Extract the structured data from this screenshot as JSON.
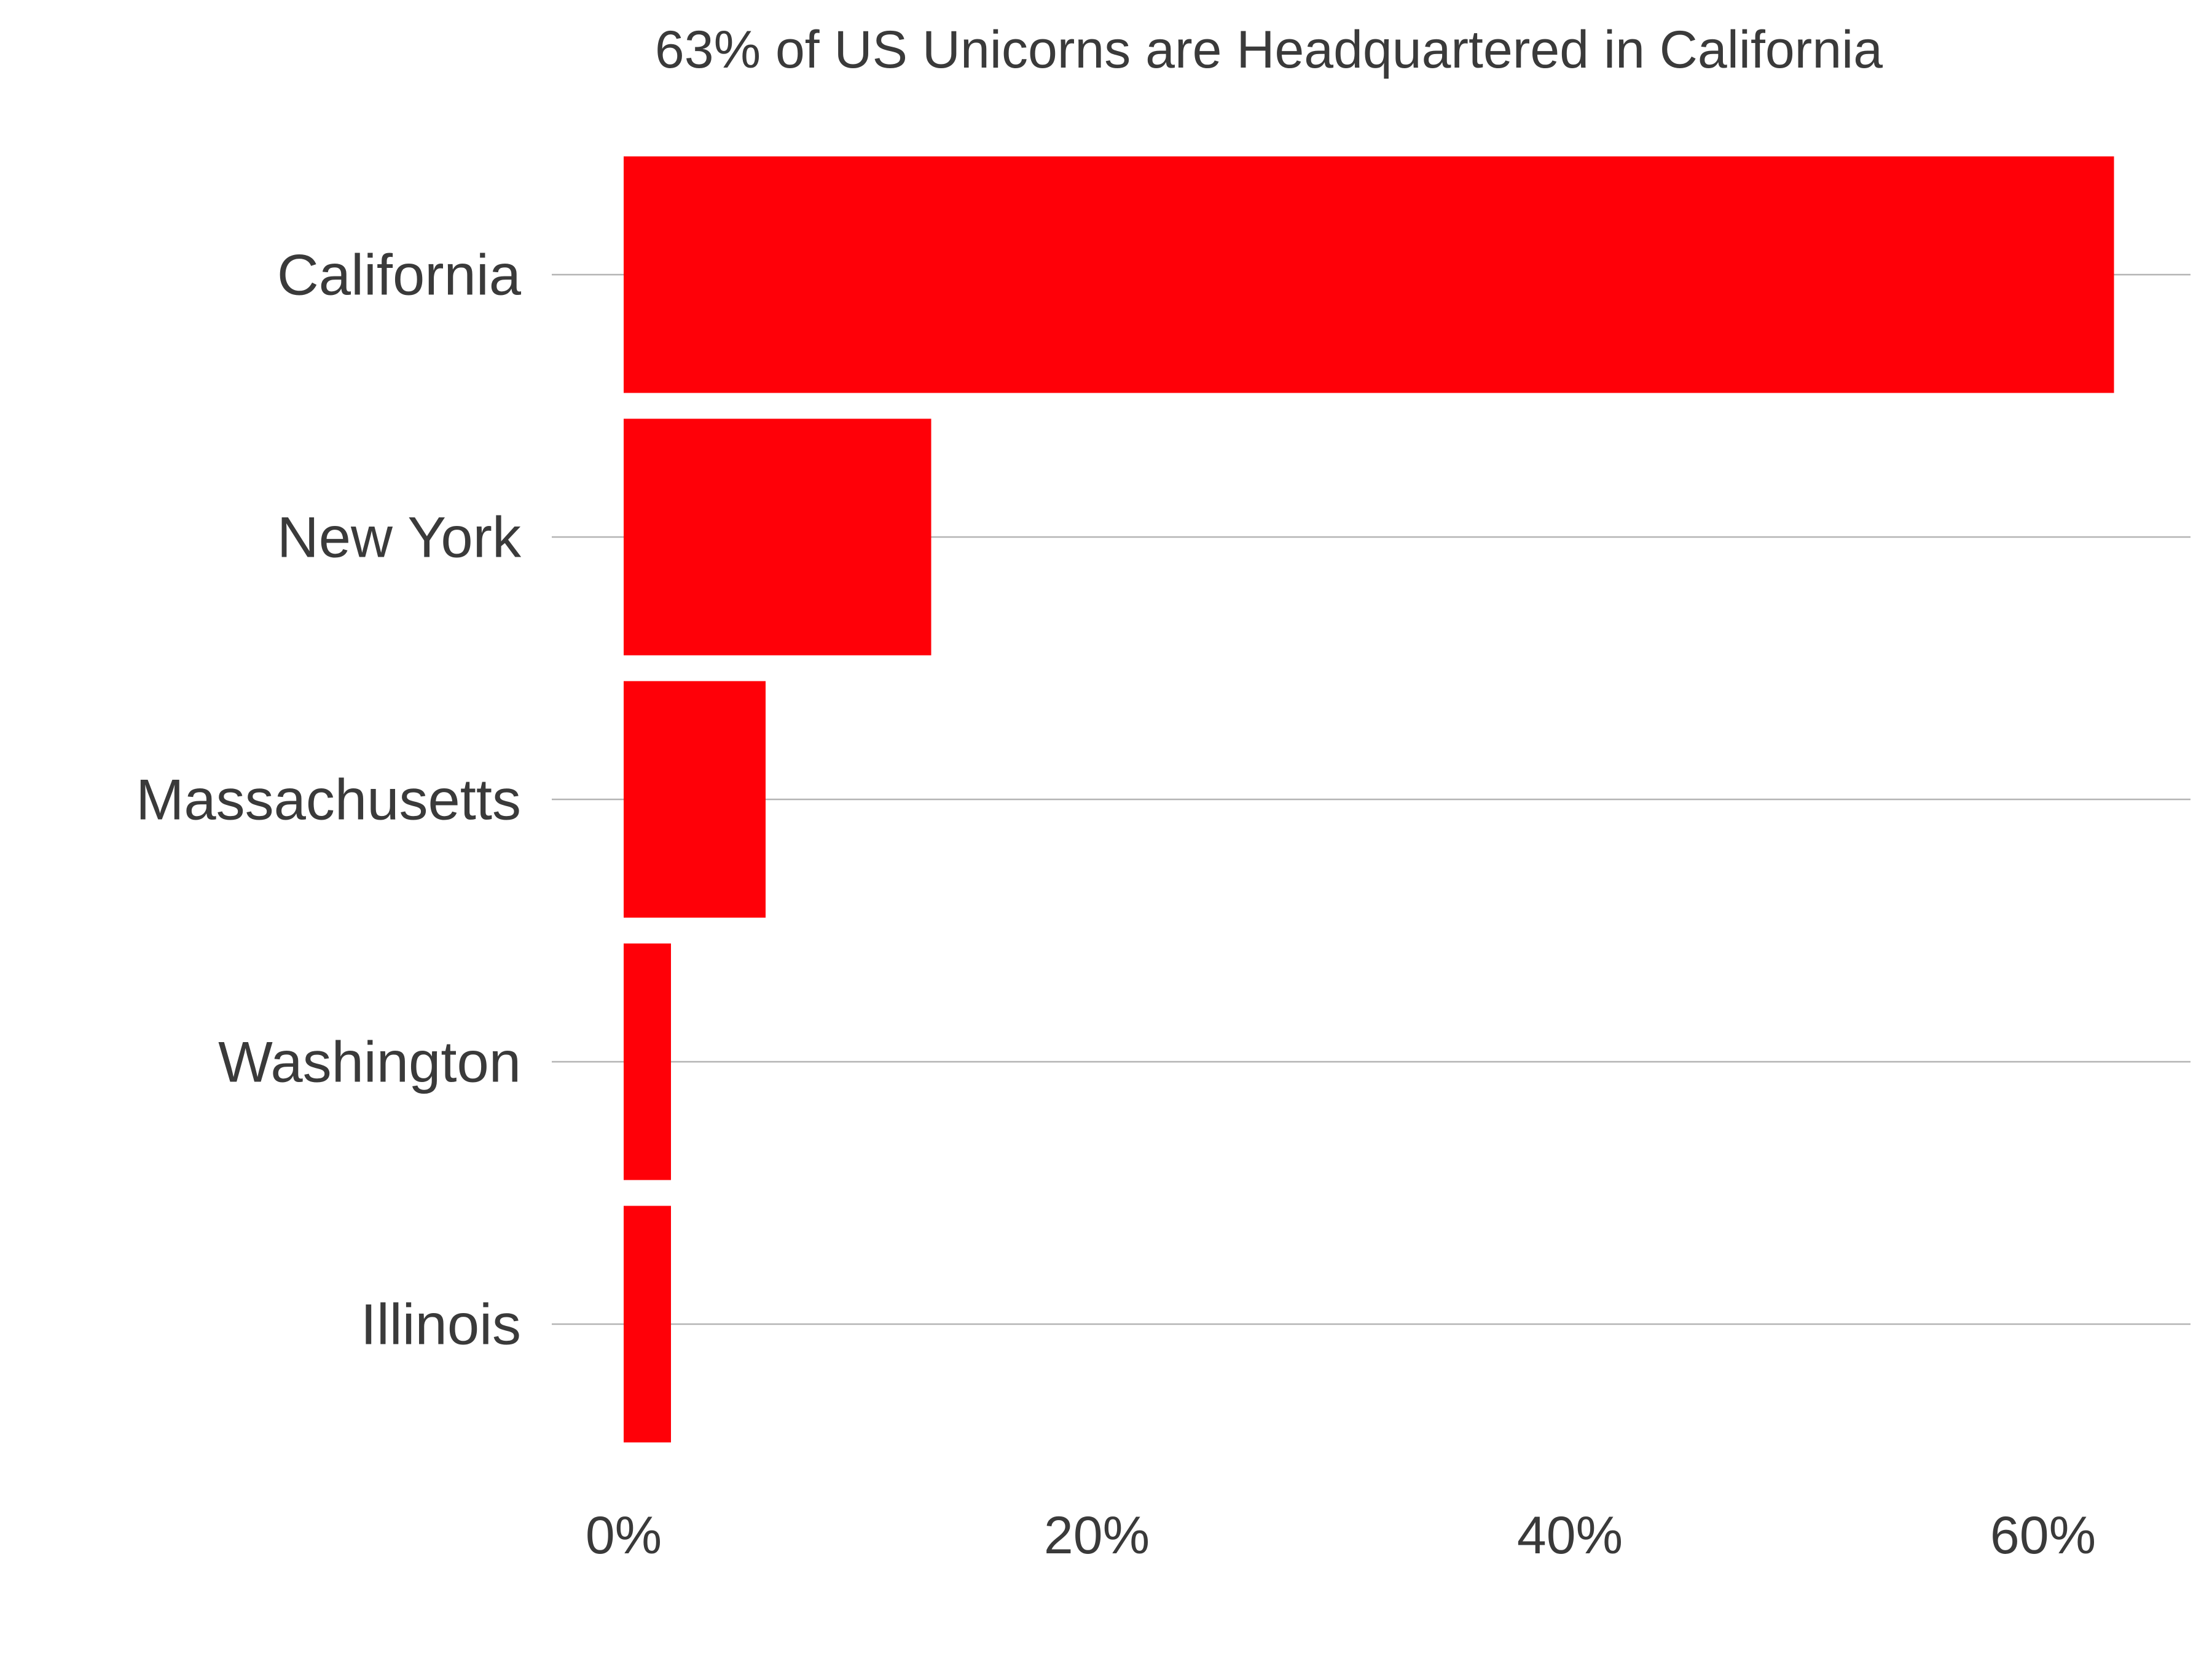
{
  "chart_data": {
    "type": "bar",
    "orientation": "horizontal",
    "title": "63% of US Unicorns are Headquartered in California",
    "xlabel": "",
    "ylabel": "",
    "categories": [
      "California",
      "New York",
      "Massachusetts",
      "Washington",
      "Illinois"
    ],
    "values": [
      63,
      13,
      6,
      2,
      2
    ],
    "value_unit": "%",
    "xlim": [
      0,
      66
    ],
    "x_ticks": [
      0,
      20,
      40,
      60
    ],
    "x_tick_labels": [
      "0%",
      "20%",
      "40%",
      "60%"
    ],
    "grid": "horizontal lines at category centers",
    "legend": "none",
    "colors": {
      "bar": "#ff0008",
      "grid": "#b4b4b4",
      "text": "#3a3a3a",
      "background": "#ffffff"
    }
  }
}
